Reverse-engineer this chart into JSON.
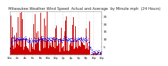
{
  "title": "Milwaukee Weather Wind Speed  Actual and Average  by Minute mph  (24 Hours)",
  "title_fontsize": 3.8,
  "title_color": "#222222",
  "bar_color": "#cc0000",
  "avg_color": "#0000ee",
  "background_color": "#ffffff",
  "plot_background": "#ffffff",
  "grid_color": "#999999",
  "n_minutes": 1440,
  "ylim": [
    0,
    28
  ],
  "ytick_labels": [
    "5",
    "10",
    "15",
    "20",
    "25"
  ],
  "ytick_values": [
    5,
    10,
    15,
    20,
    25
  ],
  "ylabel_fontsize": 3.2,
  "xlabel_fontsize": 2.8,
  "seed": 17
}
